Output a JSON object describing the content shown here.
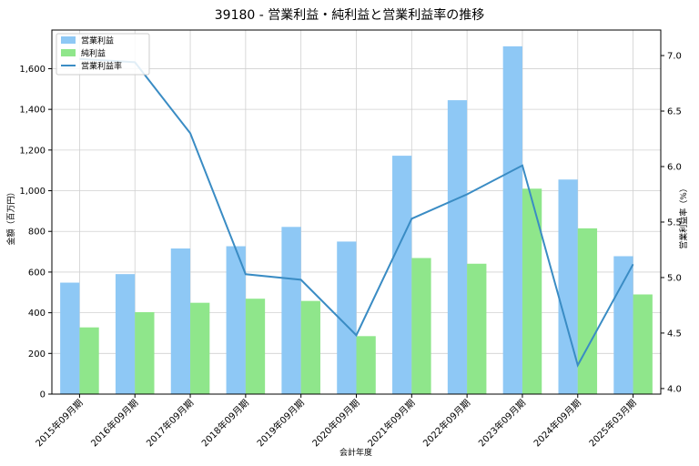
{
  "chart_data": {
    "type": "bar",
    "title": "39180 - 営業利益・純利益と営業利益率の推移",
    "xlabel": "会計年度",
    "ylabel": "金額（百万円）",
    "y2label": "営業利益率（%）",
    "categories": [
      "2015年09月期",
      "2016年09月期",
      "2017年09月期",
      "2018年09月期",
      "2019年09月期",
      "2020年09月期",
      "2021年09月期",
      "2022年09月期",
      "2023年09月期",
      "2024年09月期",
      "2025年03月期"
    ],
    "series": [
      {
        "name": "営業利益",
        "kind": "bar",
        "axis": "left",
        "color": "#8ec8f5",
        "values": [
          548,
          590,
          716,
          727,
          822,
          750,
          1172,
          1445,
          1710,
          1055,
          678
        ]
      },
      {
        "name": "純利益",
        "kind": "bar",
        "axis": "left",
        "color": "#8fe68b",
        "values": [
          328,
          403,
          449,
          469,
          458,
          285,
          669,
          641,
          1010,
          815,
          490
        ]
      },
      {
        "name": "営業利益率",
        "kind": "line",
        "axis": "right",
        "color": "#3a8cc4",
        "values": [
          6.97,
          6.94,
          6.3,
          5.03,
          4.98,
          4.48,
          5.53,
          5.75,
          6.01,
          4.21,
          5.12
        ]
      }
    ],
    "ylim": [
      0,
      1790
    ],
    "y2lim": [
      3.95,
      7.23
    ],
    "yticks": [
      0,
      200,
      400,
      600,
      800,
      1000,
      1200,
      1400,
      1600
    ],
    "yticklabels": [
      "0",
      "200",
      "400",
      "600",
      "800",
      "1,000",
      "1,200",
      "1,400",
      "1,600"
    ],
    "y2ticks": [
      4.0,
      4.5,
      5.0,
      5.5,
      6.0,
      6.5,
      7.0
    ],
    "y2ticklabels": [
      "4.0",
      "4.5",
      "5.0",
      "5.5",
      "6.0",
      "6.5",
      "7.0"
    ],
    "grid": true,
    "legend_position": "top-left"
  }
}
